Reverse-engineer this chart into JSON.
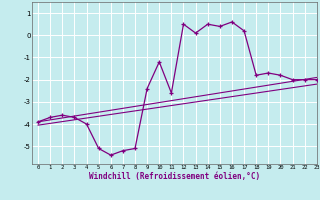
{
  "xlabel": "Windchill (Refroidissement éolien,°C)",
  "background_color": "#c5ecee",
  "grid_color": "#ffffff",
  "line_color": "#800080",
  "x_hours": [
    0,
    1,
    2,
    3,
    4,
    5,
    6,
    7,
    8,
    9,
    10,
    11,
    12,
    13,
    14,
    15,
    16,
    17,
    18,
    19,
    20,
    21,
    22,
    23
  ],
  "y_windchill": [
    -3.9,
    -3.7,
    -3.6,
    -3.7,
    -4.0,
    -5.1,
    -5.4,
    -5.2,
    -5.1,
    -2.4,
    -1.2,
    -2.6,
    0.5,
    0.1,
    0.5,
    0.4,
    0.6,
    0.2,
    -1.8,
    -1.7,
    -1.8,
    -2.0,
    -2.0,
    -2.0
  ],
  "ref_line1_x": [
    0,
    23
  ],
  "ref_line1_y": [
    -3.9,
    -1.9
  ],
  "ref_line2_x": [
    0,
    23
  ],
  "ref_line2_y": [
    -4.05,
    -2.2
  ],
  "ylim": [
    -5.8,
    1.5
  ],
  "xlim": [
    -0.5,
    23
  ],
  "yticks": [
    -5,
    -4,
    -3,
    -2,
    -1,
    0,
    1
  ],
  "xticks": [
    0,
    1,
    2,
    3,
    4,
    5,
    6,
    7,
    8,
    9,
    10,
    11,
    12,
    13,
    14,
    15,
    16,
    17,
    18,
    19,
    20,
    21,
    22,
    23
  ]
}
